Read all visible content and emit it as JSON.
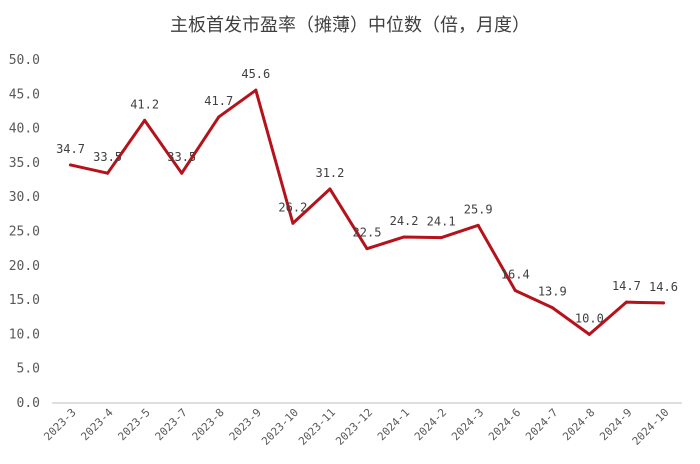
{
  "chart_data": {
    "type": "line",
    "title": "主板首发市盈率（摊薄）中位数（倍，月度）",
    "xlabel": "",
    "ylabel": "",
    "categories": [
      "2023-3",
      "2023-4",
      "2023-5",
      "2023-7",
      "2023-8",
      "2023-9",
      "2023-10",
      "2023-11",
      "2023-12",
      "2024-1",
      "2024-2",
      "2024-3",
      "2024-6",
      "2024-7",
      "2024-8",
      "2024-9",
      "2024-10"
    ],
    "series": [
      {
        "values": [
          34.7,
          33.5,
          41.2,
          33.5,
          41.7,
          45.6,
          26.2,
          31.2,
          22.5,
          24.2,
          24.1,
          25.9,
          16.4,
          13.9,
          10.0,
          14.7,
          14.6
        ],
        "labels": [
          "34.7",
          "33.5",
          "41.2",
          "33.5",
          "41.7",
          "45.6",
          "26.2",
          "31.2",
          "22.5",
          "24.2",
          "24.1",
          "25.9",
          "16.4",
          "13.9",
          "10.0",
          "14.7",
          "14.6"
        ],
        "color": "#B5121B"
      }
    ],
    "ylim": [
      0,
      50
    ],
    "yticks": [
      "0.0",
      "5.0",
      "10.0",
      "15.0",
      "20.0",
      "25.0",
      "30.0",
      "35.0",
      "40.0",
      "45.0",
      "50.0"
    ],
    "grid": false,
    "legend": "none"
  }
}
